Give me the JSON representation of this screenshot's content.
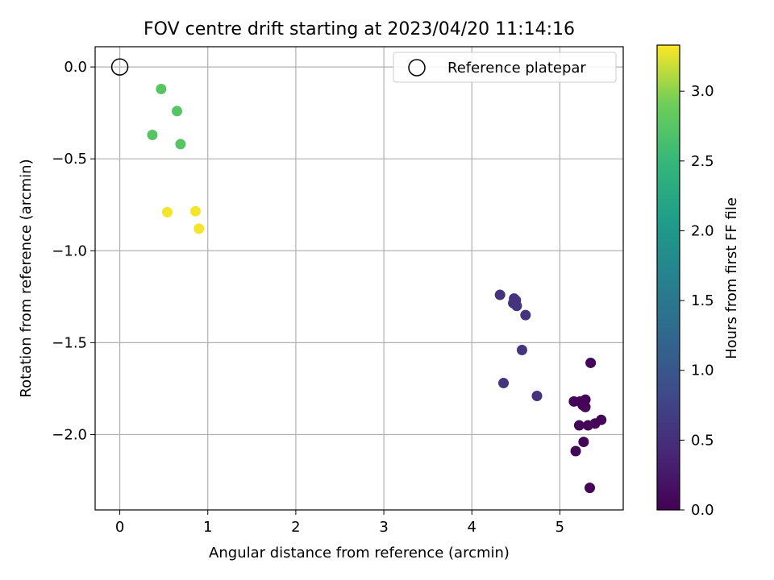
{
  "chart_data": {
    "type": "scatter",
    "title": "FOV centre drift starting at 2023/04/20 11:14:16",
    "xlabel": "Angular distance from reference (arcmin)",
    "ylabel": "Rotation from reference (arcmin)",
    "xlim": [
      -0.28,
      5.72
    ],
    "ylim": [
      -2.41,
      0.11
    ],
    "xticks": [
      0,
      1,
      2,
      3,
      4,
      5
    ],
    "xtick_labels": [
      "0",
      "1",
      "2",
      "3",
      "4",
      "5"
    ],
    "yticks": [
      0.0,
      -0.5,
      -1.0,
      -1.5,
      -2.0
    ],
    "ytick_labels": [
      "0.0",
      "−0.5",
      "−1.0",
      "−1.5",
      "−2.0"
    ],
    "grid": true,
    "legend": {
      "position": "top-right",
      "label": "Reference platepar"
    },
    "reference_point": {
      "x": 0,
      "y": 0
    },
    "colorbar": {
      "label": "Hours from first FF file",
      "range": [
        0.0,
        3.33
      ],
      "ticks": [
        0.0,
        0.5,
        1.0,
        1.5,
        2.0,
        2.5,
        3.0
      ],
      "tick_labels": [
        "0.0",
        "0.5",
        "1.0",
        "1.5",
        "2.0",
        "2.5",
        "3.0"
      ],
      "colormap": "viridis"
    },
    "points": [
      {
        "x": 0.47,
        "y": -0.12,
        "hours": 2.75
      },
      {
        "x": 0.65,
        "y": -0.24,
        "hours": 2.75
      },
      {
        "x": 0.37,
        "y": -0.37,
        "hours": 2.75
      },
      {
        "x": 0.69,
        "y": -0.42,
        "hours": 2.75
      },
      {
        "x": 0.54,
        "y": -0.79,
        "hours": 3.3
      },
      {
        "x": 0.86,
        "y": -0.785,
        "hours": 3.3
      },
      {
        "x": 0.9,
        "y": -0.88,
        "hours": 3.3
      },
      {
        "x": 4.32,
        "y": -1.24,
        "hours": 0.55
      },
      {
        "x": 4.48,
        "y": -1.26,
        "hours": 0.55
      },
      {
        "x": 4.5,
        "y": -1.27,
        "hours": 0.55
      },
      {
        "x": 4.47,
        "y": -1.285,
        "hours": 0.55
      },
      {
        "x": 4.51,
        "y": -1.3,
        "hours": 0.55
      },
      {
        "x": 4.61,
        "y": -1.35,
        "hours": 0.55
      },
      {
        "x": 4.57,
        "y": -1.54,
        "hours": 0.55
      },
      {
        "x": 4.36,
        "y": -1.72,
        "hours": 0.55
      },
      {
        "x": 4.74,
        "y": -1.79,
        "hours": 0.55
      },
      {
        "x": 5.35,
        "y": -1.61,
        "hours": 0.03
      },
      {
        "x": 5.16,
        "y": -1.82,
        "hours": 0.03
      },
      {
        "x": 5.23,
        "y": -1.82,
        "hours": 0.03
      },
      {
        "x": 5.29,
        "y": -1.81,
        "hours": 0.03
      },
      {
        "x": 5.26,
        "y": -1.84,
        "hours": 0.03
      },
      {
        "x": 5.29,
        "y": -1.85,
        "hours": 0.03
      },
      {
        "x": 5.22,
        "y": -1.95,
        "hours": 0.03
      },
      {
        "x": 5.32,
        "y": -1.95,
        "hours": 0.03
      },
      {
        "x": 5.4,
        "y": -1.94,
        "hours": 0.03
      },
      {
        "x": 5.47,
        "y": -1.92,
        "hours": 0.03
      },
      {
        "x": 5.27,
        "y": -2.04,
        "hours": 0.03
      },
      {
        "x": 5.18,
        "y": -2.09,
        "hours": 0.03
      },
      {
        "x": 5.34,
        "y": -2.29,
        "hours": 0.03
      }
    ]
  }
}
